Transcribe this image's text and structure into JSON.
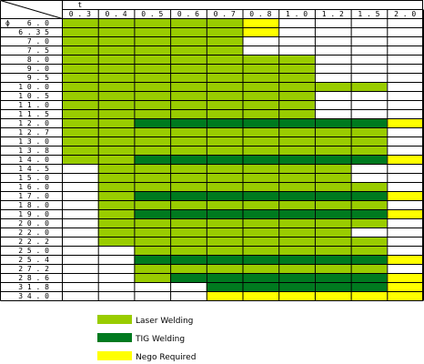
{
  "corner": {
    "t_symbol": "t",
    "phi_symbol": "ϕ"
  },
  "thickness": [
    "0.3",
    "0.4",
    "0.5",
    "0.6",
    "0.7",
    "0.8",
    "1.0",
    "1.2",
    "1.5",
    "2.0"
  ],
  "colors": {
    "L": "#99cc00",
    "T": "#007a1f",
    "N": "#ffff00",
    "": "#ffffff"
  },
  "rows": [
    {
      "d": "6.0",
      "c": [
        "L",
        "L",
        "L",
        "L",
        "L",
        "N",
        "",
        "",
        "",
        ""
      ]
    },
    {
      "d": "6.35",
      "c": [
        "L",
        "L",
        "L",
        "L",
        "L",
        "N",
        "",
        "",
        "",
        ""
      ]
    },
    {
      "d": "7.0",
      "c": [
        "L",
        "L",
        "L",
        "L",
        "L",
        "",
        "",
        "",
        "",
        ""
      ]
    },
    {
      "d": "7.5",
      "c": [
        "L",
        "L",
        "L",
        "L",
        "L",
        "",
        "",
        "",
        "",
        ""
      ]
    },
    {
      "d": "8.0",
      "c": [
        "L",
        "L",
        "L",
        "L",
        "L",
        "L",
        "L",
        "",
        "",
        ""
      ]
    },
    {
      "d": "9.0",
      "c": [
        "L",
        "L",
        "L",
        "L",
        "L",
        "L",
        "L",
        "",
        "",
        ""
      ]
    },
    {
      "d": "9.5",
      "c": [
        "L",
        "L",
        "L",
        "L",
        "L",
        "L",
        "L",
        "",
        "",
        ""
      ]
    },
    {
      "d": "10.0",
      "c": [
        "L",
        "L",
        "L",
        "L",
        "L",
        "L",
        "L",
        "L",
        "L",
        ""
      ]
    },
    {
      "d": "10.5",
      "c": [
        "L",
        "L",
        "L",
        "L",
        "L",
        "L",
        "L",
        "",
        "",
        ""
      ]
    },
    {
      "d": "11.0",
      "c": [
        "L",
        "L",
        "L",
        "L",
        "L",
        "L",
        "L",
        "",
        "",
        ""
      ]
    },
    {
      "d": "11.5",
      "c": [
        "L",
        "L",
        "L",
        "L",
        "L",
        "L",
        "L",
        "",
        "",
        ""
      ]
    },
    {
      "d": "12.0",
      "c": [
        "L",
        "L",
        "T",
        "T",
        "T",
        "T",
        "T",
        "T",
        "T",
        "N"
      ]
    },
    {
      "d": "12.7",
      "c": [
        "L",
        "L",
        "L",
        "L",
        "L",
        "L",
        "L",
        "L",
        "L",
        ""
      ]
    },
    {
      "d": "13.0",
      "c": [
        "L",
        "L",
        "L",
        "L",
        "L",
        "L",
        "L",
        "L",
        "L",
        ""
      ]
    },
    {
      "d": "13.8",
      "c": [
        "L",
        "L",
        "L",
        "L",
        "L",
        "L",
        "L",
        "L",
        "L",
        ""
      ]
    },
    {
      "d": "14.0",
      "c": [
        "L",
        "L",
        "T",
        "T",
        "T",
        "T",
        "T",
        "T",
        "T",
        "N"
      ]
    },
    {
      "d": "14.5",
      "c": [
        "",
        "L",
        "L",
        "L",
        "L",
        "L",
        "L",
        "L",
        "",
        ""
      ]
    },
    {
      "d": "15.0",
      "c": [
        "",
        "L",
        "L",
        "L",
        "L",
        "L",
        "L",
        "L",
        "",
        ""
      ]
    },
    {
      "d": "16.0",
      "c": [
        "",
        "L",
        "L",
        "L",
        "L",
        "L",
        "L",
        "L",
        "L",
        ""
      ]
    },
    {
      "d": "17.0",
      "c": [
        "",
        "L",
        "T",
        "T",
        "T",
        "T",
        "T",
        "T",
        "T",
        "N"
      ]
    },
    {
      "d": "18.0",
      "c": [
        "",
        "L",
        "L",
        "L",
        "L",
        "L",
        "L",
        "L",
        "L",
        ""
      ]
    },
    {
      "d": "19.0",
      "c": [
        "",
        "L",
        "T",
        "T",
        "T",
        "T",
        "T",
        "T",
        "T",
        "N"
      ]
    },
    {
      "d": "20.0",
      "c": [
        "",
        "L",
        "L",
        "L",
        "L",
        "L",
        "L",
        "L",
        "L",
        ""
      ]
    },
    {
      "d": "22.0",
      "c": [
        "",
        "L",
        "L",
        "L",
        "L",
        "L",
        "L",
        "L",
        "",
        ""
      ]
    },
    {
      "d": "22.2",
      "c": [
        "",
        "L",
        "L",
        "L",
        "L",
        "L",
        "L",
        "L",
        "L",
        ""
      ]
    },
    {
      "d": "25.0",
      "c": [
        "",
        "",
        "L",
        "L",
        "L",
        "L",
        "L",
        "L",
        "L",
        ""
      ]
    },
    {
      "d": "25.4",
      "c": [
        "",
        "",
        "T",
        "T",
        "T",
        "T",
        "T",
        "T",
        "T",
        "N"
      ]
    },
    {
      "d": "27.2",
      "c": [
        "",
        "",
        "L",
        "L",
        "L",
        "L",
        "L",
        "L",
        "L",
        ""
      ]
    },
    {
      "d": "28.6",
      "c": [
        "",
        "",
        "L",
        "T",
        "T",
        "T",
        "T",
        "T",
        "T",
        "N"
      ]
    },
    {
      "d": "31.8",
      "c": [
        "",
        "",
        "",
        "",
        "T",
        "T",
        "T",
        "T",
        "T",
        "N"
      ]
    },
    {
      "d": "34.0",
      "c": [
        "",
        "",
        "",
        "",
        "N",
        "N",
        "N",
        "N",
        "N",
        "N"
      ]
    }
  ],
  "legend": [
    {
      "key": "L",
      "label": "Laser Welding"
    },
    {
      "key": "T",
      "label": "TIG Welding"
    },
    {
      "key": "N",
      "label": "Nego Required"
    }
  ]
}
